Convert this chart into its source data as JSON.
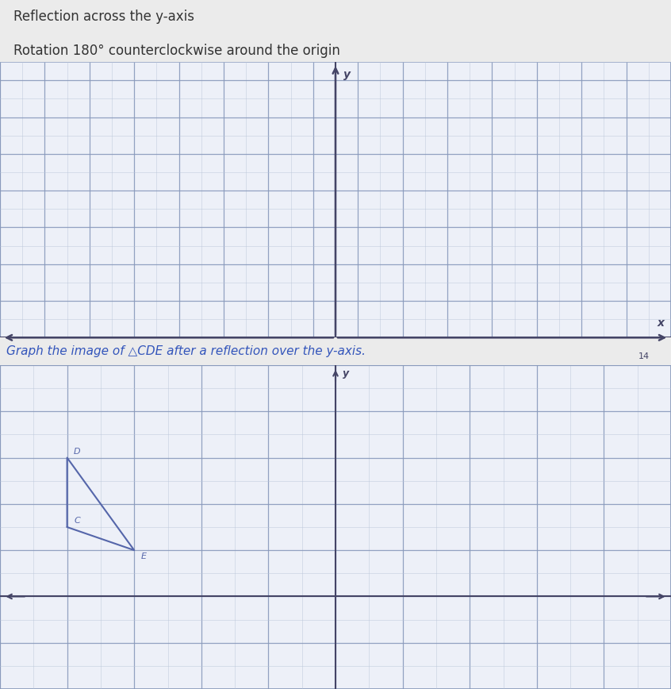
{
  "text_line1": "Reflection across the y-axis",
  "text_line2": "Rotation 180° counterclockwise around the origin",
  "graph1": {
    "xlim": [
      -15,
      15
    ],
    "ylim": [
      0,
      15
    ],
    "yticks_even": [
      2,
      4,
      6,
      8,
      10,
      12,
      14
    ],
    "grid_minor_color": "#b8c4d8",
    "grid_major_color": "#8899bb",
    "axis_color": "#444466",
    "background": "#edf0f8",
    "x_label_val": 14
  },
  "graph2": {
    "xlim": [
      -10,
      10
    ],
    "ylim": [
      -4,
      10
    ],
    "xtick_step": 2,
    "ytick_step": 2,
    "grid_minor_color": "#b8c4d8",
    "grid_major_color": "#8899bb",
    "axis_color": "#444466",
    "background": "#edf0f8",
    "triangle_CDE": {
      "C": [
        -8,
        3
      ],
      "D": [
        -8,
        6
      ],
      "E": [
        -6,
        2
      ]
    },
    "triangle_color": "#5566aa",
    "label_color": "#5566aa",
    "label_fontsize": 8
  },
  "subtitle": "Graph the image of △CDE after a reflection over the y-axis.",
  "subtitle_color": "#3355bb",
  "subtitle_fontsize": 11,
  "text_color": "#333333",
  "text_fontsize": 12,
  "fig_bg": "#ebebeb"
}
